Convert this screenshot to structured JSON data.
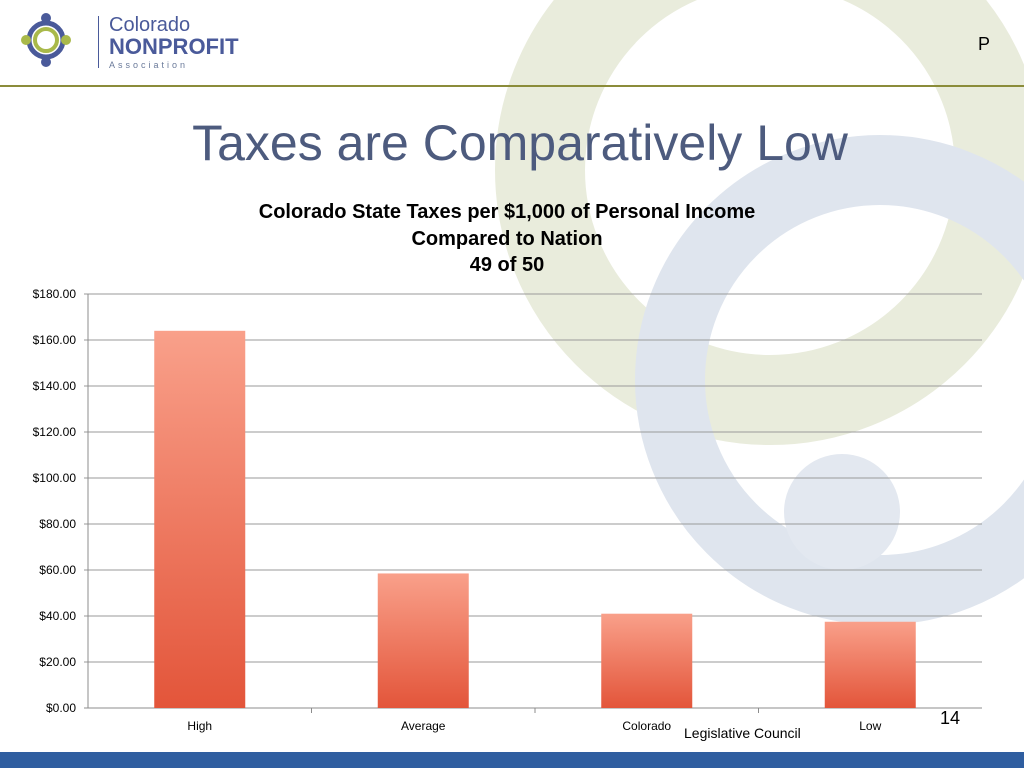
{
  "header": {
    "logo": {
      "line1": "Colorado",
      "line2": "NONPROFIT",
      "line3": "Association"
    },
    "corner_letter": "P"
  },
  "slide": {
    "title": "Taxes are Comparatively Low",
    "page_number": "14",
    "source": "Legislative Council"
  },
  "colors": {
    "bar_top": "#f9a08a",
    "bar_bottom": "#e3553a",
    "title": "#4d5b7e",
    "rule": "#8b8c3a",
    "band": "#2f5ea0"
  },
  "chart_data": {
    "type": "bar",
    "title_lines": [
      "Colorado State Taxes per $1,000 of Personal Income",
      "Compared to Nation",
      "49 of 50"
    ],
    "categories": [
      "High",
      "Average",
      "Colorado",
      "Low"
    ],
    "values": [
      164,
      58.5,
      41,
      37.5
    ],
    "ylim": [
      0,
      180
    ],
    "yticks": [
      "$0.00",
      "$20.00",
      "$40.00",
      "$60.00",
      "$80.00",
      "$100.00",
      "$120.00",
      "$140.00",
      "$160.00",
      "$180.00"
    ],
    "grid": true,
    "xlabel": "",
    "ylabel": ""
  }
}
